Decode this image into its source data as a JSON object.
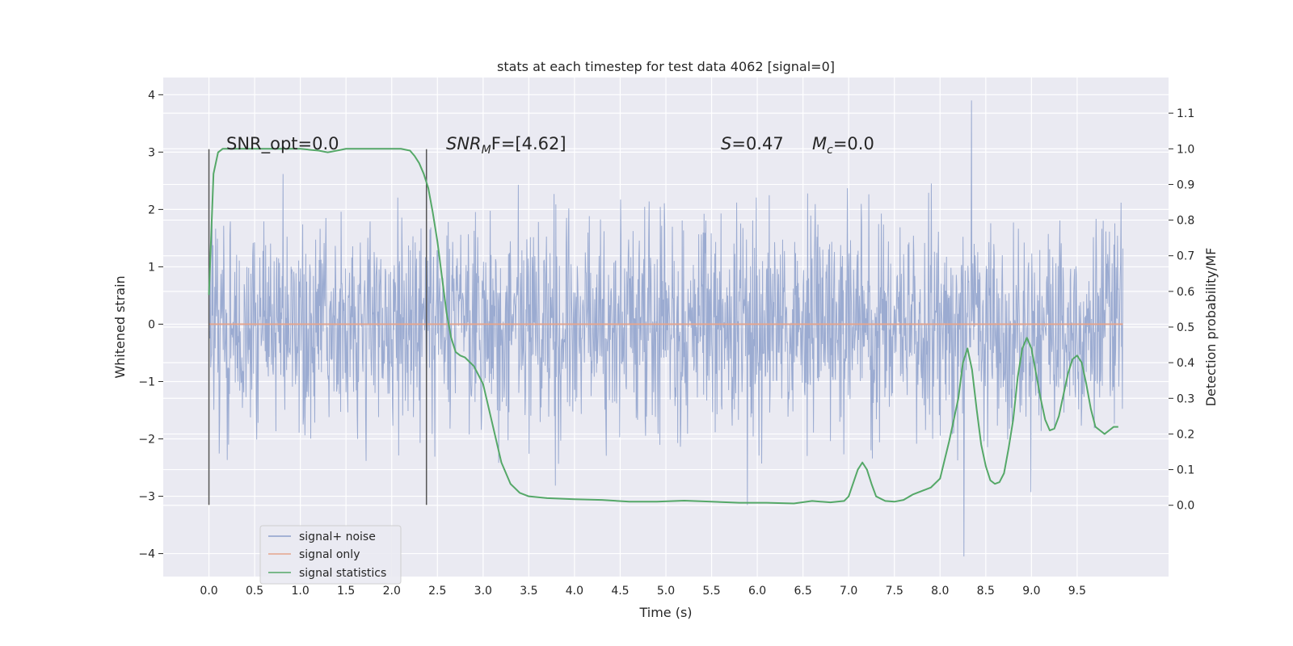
{
  "chart_data": {
    "type": "line",
    "title": "stats at each timestep for test data 4062 [signal=0]",
    "xlabel": "Time (s)",
    "ylabel": "Whitened strain",
    "y2label": "Detection probability/MF",
    "xlim": [
      -0.5,
      10.5
    ],
    "ylim": [
      -4.4,
      4.3
    ],
    "y2lim": [
      -0.2,
      1.2
    ],
    "xticks": [
      0.0,
      0.5,
      1.0,
      1.5,
      2.0,
      2.5,
      3.0,
      3.5,
      4.0,
      4.5,
      5.0,
      5.5,
      6.0,
      6.5,
      7.0,
      7.5,
      8.0,
      8.5,
      9.0,
      9.5
    ],
    "xtick_labels": [
      "0.0",
      "0.5",
      "1.0",
      "1.5",
      "2.0",
      "2.5",
      "3.0",
      "3.5",
      "4.0",
      "4.5",
      "5.0",
      "5.5",
      "6.0",
      "6.5",
      "7.0",
      "7.5",
      "8.0",
      "8.5",
      "9.0",
      "9.5"
    ],
    "yticks": [
      -4,
      -3,
      -2,
      -1,
      0,
      1,
      2,
      3,
      4
    ],
    "ytick_labels": [
      "−4",
      "−3",
      "−2",
      "−1",
      "0",
      "1",
      "2",
      "3",
      "4"
    ],
    "y2ticks": [
      0.0,
      0.1,
      0.2,
      0.3,
      0.4,
      0.5,
      0.6,
      0.7,
      0.8,
      0.9,
      1.0,
      1.1
    ],
    "y2tick_labels": [
      "0.0",
      "0.1",
      "0.2",
      "0.3",
      "0.4",
      "0.5",
      "0.6",
      "0.7",
      "0.8",
      "0.9",
      "1.0",
      "1.1"
    ],
    "grid": true,
    "legend_position": "lower-left",
    "series": [
      {
        "name": "signal+ noise",
        "axis": "left",
        "color": "#8da0cb",
        "description": "dense noisy strain trace, roughly Gaussian noise with std ~0.9 from t=0 to t=10",
        "x_range": [
          0.0,
          10.0
        ],
        "approx_std": 0.9,
        "observed_max": 3.9,
        "observed_min": -4.05
      },
      {
        "name": "signal only",
        "axis": "left",
        "color": "#e5a48c",
        "x": [
          0.0,
          10.0
        ],
        "y": [
          0.0,
          0.0
        ]
      },
      {
        "name": "signal statistics",
        "axis": "right",
        "color": "#55a868",
        "x": [
          0.0,
          0.05,
          0.1,
          0.15,
          0.25,
          0.4,
          0.6,
          0.8,
          1.0,
          1.2,
          1.3,
          1.4,
          1.5,
          1.7,
          2.0,
          2.1,
          2.2,
          2.25,
          2.3,
          2.35,
          2.4,
          2.45,
          2.5,
          2.55,
          2.6,
          2.65,
          2.7,
          2.75,
          2.8,
          2.9,
          3.0,
          3.1,
          3.2,
          3.3,
          3.4,
          3.5,
          3.7,
          4.0,
          4.3,
          4.6,
          4.9,
          5.2,
          5.5,
          5.8,
          6.1,
          6.4,
          6.6,
          6.8,
          6.95,
          7.0,
          7.1,
          7.15,
          7.2,
          7.25,
          7.3,
          7.4,
          7.5,
          7.6,
          7.7,
          7.8,
          7.9,
          8.0,
          8.1,
          8.2,
          8.25,
          8.3,
          8.35,
          8.4,
          8.45,
          8.5,
          8.55,
          8.6,
          8.65,
          8.7,
          8.75,
          8.8,
          8.85,
          8.9,
          8.95,
          9.0,
          9.05,
          9.1,
          9.15,
          9.2,
          9.25,
          9.3,
          9.35,
          9.4,
          9.45,
          9.5,
          9.55,
          9.6,
          9.65,
          9.7,
          9.75,
          9.8,
          9.85,
          9.9,
          9.95
        ],
        "y": [
          0.59,
          0.93,
          0.99,
          1.0,
          1.0,
          1.0,
          1.0,
          1.0,
          1.0,
          0.995,
          0.99,
          0.995,
          1.0,
          1.0,
          1.0,
          1.0,
          0.995,
          0.98,
          0.96,
          0.93,
          0.89,
          0.82,
          0.74,
          0.64,
          0.54,
          0.47,
          0.43,
          0.42,
          0.415,
          0.39,
          0.34,
          0.23,
          0.12,
          0.06,
          0.035,
          0.025,
          0.02,
          0.017,
          0.015,
          0.01,
          0.01,
          0.013,
          0.01,
          0.007,
          0.007,
          0.005,
          0.012,
          0.008,
          0.012,
          0.025,
          0.1,
          0.12,
          0.1,
          0.06,
          0.025,
          0.012,
          0.01,
          0.015,
          0.03,
          0.04,
          0.05,
          0.075,
          0.18,
          0.3,
          0.4,
          0.44,
          0.38,
          0.27,
          0.17,
          0.11,
          0.07,
          0.06,
          0.065,
          0.09,
          0.16,
          0.24,
          0.36,
          0.44,
          0.47,
          0.44,
          0.37,
          0.3,
          0.24,
          0.21,
          0.215,
          0.25,
          0.31,
          0.37,
          0.41,
          0.42,
          0.4,
          0.34,
          0.27,
          0.22,
          0.21,
          0.2,
          0.21,
          0.22,
          0.22
        ]
      }
    ],
    "vertical_lines": [
      {
        "x": 0.0,
        "ymin": -3.15,
        "ymax": 3.05,
        "color": "#555555"
      },
      {
        "x": 2.38,
        "ymin": -3.15,
        "ymax": 3.05,
        "color": "#555555"
      }
    ],
    "annotations": [
      {
        "id": "snr-opt",
        "text": "SNR_opt=0.0",
        "x": 0.2,
        "y": 3.05
      },
      {
        "id": "snr-mf",
        "x": 2.6,
        "y": 3.05,
        "main": "SNR",
        "sub": "M",
        "rest": "F=[4.62]"
      },
      {
        "id": "s-value",
        "x": 5.6,
        "y": 3.05,
        "main": "S",
        "rest": "=0.47"
      },
      {
        "id": "mc-value",
        "x": 6.6,
        "y": 3.05,
        "main": "M",
        "sub": "c",
        "rest": "=0.0"
      }
    ]
  }
}
